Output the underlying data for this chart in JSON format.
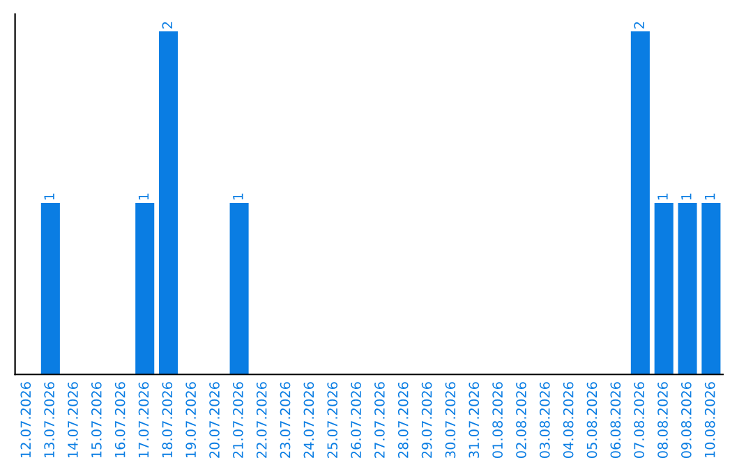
{
  "chart_data": {
    "type": "bar",
    "categories": [
      "12.07.2026",
      "13.07.2026",
      "14.07.2026",
      "15.07.2026",
      "16.07.2026",
      "17.07.2026",
      "18.07.2026",
      "19.07.2026",
      "20.07.2026",
      "21.07.2026",
      "22.07.2026",
      "23.07.2026",
      "24.07.2026",
      "25.07.2026",
      "26.07.2026",
      "27.07.2026",
      "28.07.2026",
      "29.07.2026",
      "30.07.2026",
      "31.07.2026",
      "01.08.2026",
      "02.08.2026",
      "03.08.2026",
      "04.08.2026",
      "05.08.2026",
      "06.08.2026",
      "07.08.2026",
      "08.08.2026",
      "09.08.2026",
      "10.08.2026"
    ],
    "values": [
      0,
      1,
      0,
      0,
      0,
      1,
      2,
      0,
      0,
      1,
      0,
      0,
      0,
      0,
      0,
      0,
      0,
      0,
      0,
      0,
      0,
      0,
      0,
      0,
      0,
      0,
      2,
      1,
      1,
      1
    ],
    "value_labels": [
      null,
      "1",
      null,
      null,
      null,
      "1",
      "2",
      null,
      null,
      "1",
      null,
      null,
      null,
      null,
      null,
      null,
      null,
      null,
      null,
      null,
      null,
      null,
      null,
      null,
      null,
      null,
      "2",
      "1",
      "1",
      "1"
    ],
    "color": "#0a7de3",
    "tick_labels": "x",
    "grid": false,
    "legend": false
  }
}
